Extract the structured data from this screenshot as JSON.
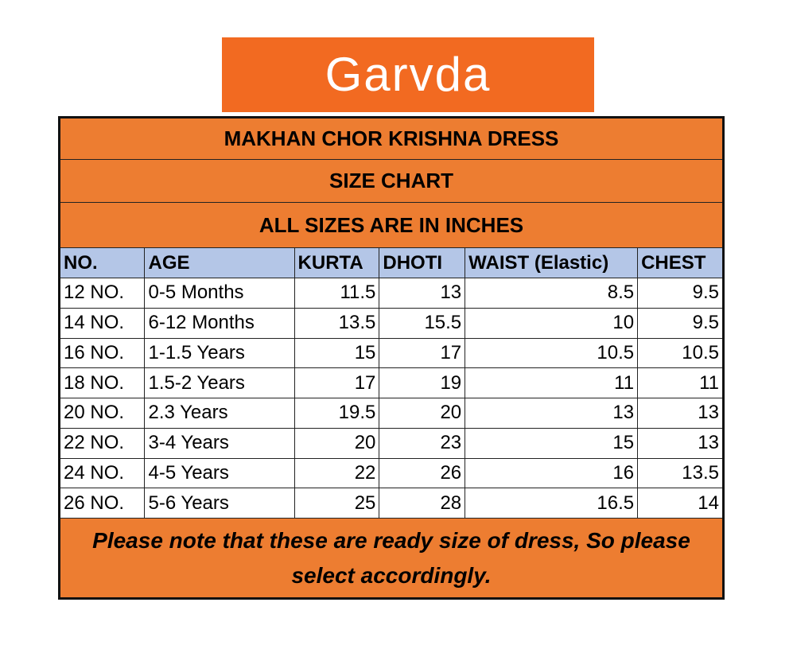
{
  "logo": "Garvda",
  "table": {
    "titles": [
      "MAKHAN CHOR KRISHNA DRESS",
      "SIZE CHART",
      "ALL SIZES ARE IN INCHES"
    ],
    "columns": [
      "NO.",
      "AGE",
      "KURTA",
      "DHOTI",
      "WAIST (Elastic)",
      "CHEST"
    ],
    "rows": [
      [
        "12 NO.",
        "0-5 Months",
        "11.5",
        "13",
        "8.5",
        "9.5"
      ],
      [
        "14 NO.",
        "6-12 Months",
        "13.5",
        "15.5",
        "10",
        "9.5"
      ],
      [
        "16 NO.",
        "1-1.5 Years",
        "15",
        "17",
        "10.5",
        "10.5"
      ],
      [
        "18 NO.",
        "1.5-2 Years",
        "17",
        "19",
        "11",
        "11"
      ],
      [
        "20 NO.",
        "2.3 Years",
        "19.5",
        "20",
        "13",
        "13"
      ],
      [
        "22 NO.",
        "3-4 Years",
        "20",
        "23",
        "15",
        "13"
      ],
      [
        "24 NO.",
        "4-5 Years",
        "22",
        "26",
        "16",
        "13.5"
      ],
      [
        "26 NO.",
        "5-6 Years",
        "25",
        "28",
        "16.5",
        "14"
      ]
    ],
    "note": "Please note that these are ready size of dress, So please select accordingly."
  }
}
